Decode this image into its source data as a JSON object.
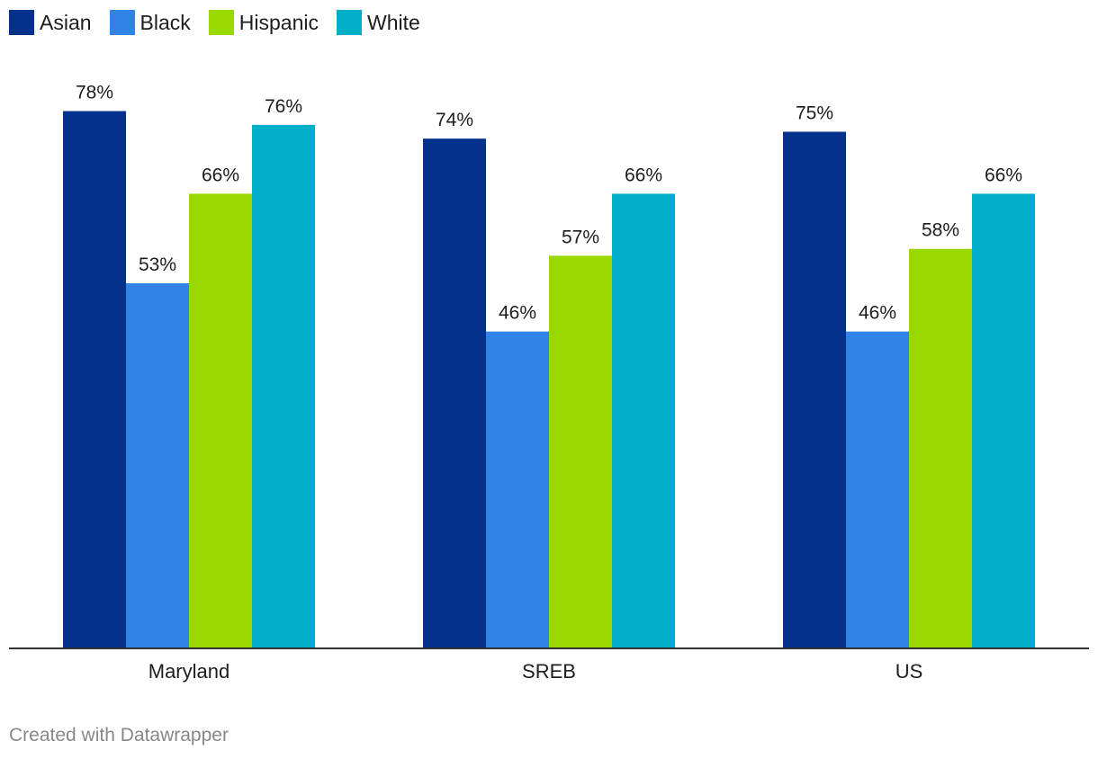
{
  "chart_data": {
    "type": "bar",
    "categories": [
      "Maryland",
      "SREB",
      "US"
    ],
    "series": [
      {
        "name": "Asian",
        "color": "#03318c",
        "values": [
          78,
          74,
          75
        ]
      },
      {
        "name": "Black",
        "color": "#3183e4",
        "values": [
          53,
          46,
          46
        ]
      },
      {
        "name": "Hispanic",
        "color": "#99d801",
        "values": [
          66,
          57,
          58
        ]
      },
      {
        "name": "White",
        "color": "#00aec8",
        "values": [
          76,
          66,
          66
        ]
      }
    ],
    "value_suffix": "%",
    "ylim": [
      0,
      100
    ],
    "legend_position": "top-left",
    "grid": false
  },
  "footer": {
    "credit": "Created with Datawrapper"
  }
}
